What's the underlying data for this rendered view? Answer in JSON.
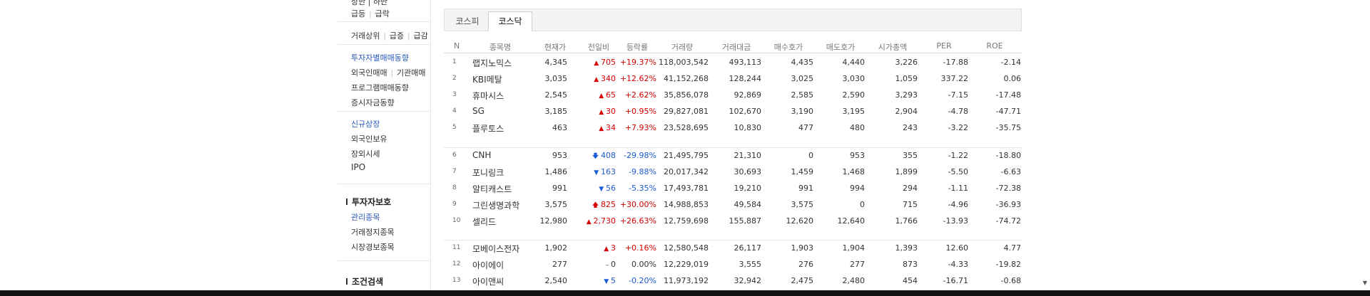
{
  "sidebar": {
    "cut_text": "상한 | 하한",
    "surge": {
      "a": "급등",
      "b": "급락"
    },
    "vol_top": {
      "a": "거래상위",
      "b": "급증",
      "c": "급감"
    },
    "investor_trade": "투자자별매매동향",
    "foreign_inst": {
      "a": "외국인매매",
      "b": "기관매매"
    },
    "program": "프로그램매매동향",
    "funds": "증시자금동향",
    "new_listing": "신규상장",
    "foreign_hold": "외국인보유",
    "otc": "장외시세",
    "ipo": "IPO",
    "protect_head": "투자자보호",
    "managed": "관리종목",
    "halted": "거래정지종목",
    "warning": "시장경보종목",
    "search_head": "조건검색"
  },
  "tabs": [
    {
      "label": "코스피",
      "active": false
    },
    {
      "label": "코스닥",
      "active": true
    }
  ],
  "columns": [
    "N",
    "종목명",
    "현재가",
    "전일비",
    "등락률",
    "거래량",
    "거래대금",
    "매수호가",
    "매도호가",
    "시가총액",
    "PER",
    "ROE"
  ],
  "rows": [
    {
      "n": "1",
      "name": "랩지노믹스",
      "price": "4,345",
      "icon": "▲",
      "chg": "705",
      "dir": "up",
      "rate": "+19.37%",
      "vol": "118,003,542",
      "amt": "493,113",
      "bid": "4,435",
      "ask": "4,440",
      "cap": "3,226",
      "per": "-17.88",
      "roe": "-2.14"
    },
    {
      "n": "2",
      "name": "KBI메탈",
      "price": "3,035",
      "icon": "▲",
      "chg": "340",
      "dir": "up",
      "rate": "+12.62%",
      "vol": "41,152,268",
      "amt": "128,244",
      "bid": "3,025",
      "ask": "3,030",
      "cap": "1,059",
      "per": "337.22",
      "roe": "0.06"
    },
    {
      "n": "3",
      "name": "휴마시스",
      "price": "2,545",
      "icon": "▲",
      "chg": "65",
      "dir": "up",
      "rate": "+2.62%",
      "vol": "35,856,078",
      "amt": "92,869",
      "bid": "2,585",
      "ask": "2,590",
      "cap": "3,293",
      "per": "-7.15",
      "roe": "-17.48"
    },
    {
      "n": "4",
      "name": "SG",
      "price": "3,185",
      "icon": "▲",
      "chg": "30",
      "dir": "up",
      "rate": "+0.95%",
      "vol": "29,827,081",
      "amt": "102,670",
      "bid": "3,190",
      "ask": "3,195",
      "cap": "2,904",
      "per": "-4.78",
      "roe": "-47.71"
    },
    {
      "n": "5",
      "name": "플루토스",
      "price": "463",
      "icon": "▲",
      "chg": "34",
      "dir": "up",
      "rate": "+7.93%",
      "vol": "23,528,695",
      "amt": "10,830",
      "bid": "477",
      "ask": "480",
      "cap": "243",
      "per": "-3.22",
      "roe": "-35.75"
    },
    {
      "n": "6",
      "name": "CNH",
      "price": "953",
      "icon": "🡇",
      "chg": "408",
      "dir": "down",
      "rate": "-29.98%",
      "vol": "21,495,795",
      "amt": "21,310",
      "bid": "0",
      "ask": "953",
      "cap": "355",
      "per": "-1.22",
      "roe": "-18.80"
    },
    {
      "n": "7",
      "name": "포니링크",
      "price": "1,486",
      "icon": "▼",
      "chg": "163",
      "dir": "down",
      "rate": "-9.88%",
      "vol": "20,017,342",
      "amt": "30,693",
      "bid": "1,459",
      "ask": "1,468",
      "cap": "1,899",
      "per": "-5.50",
      "roe": "-6.63"
    },
    {
      "n": "8",
      "name": "알티캐스트",
      "price": "991",
      "icon": "▼",
      "chg": "56",
      "dir": "down",
      "rate": "-5.35%",
      "vol": "17,493,781",
      "amt": "19,210",
      "bid": "991",
      "ask": "994",
      "cap": "294",
      "per": "-1.11",
      "roe": "-72.38"
    },
    {
      "n": "9",
      "name": "그린생명과학",
      "price": "3,575",
      "icon": "🡅",
      "chg": "825",
      "dir": "up",
      "rate": "+30.00%",
      "vol": "14,988,853",
      "amt": "49,584",
      "bid": "3,575",
      "ask": "0",
      "cap": "715",
      "per": "-4.96",
      "roe": "-36.93"
    },
    {
      "n": "10",
      "name": "셀리드",
      "price": "12,980",
      "icon": "▲",
      "chg": "2,730",
      "dir": "up",
      "rate": "+26.63%",
      "vol": "12,759,698",
      "amt": "155,887",
      "bid": "12,620",
      "ask": "12,640",
      "cap": "1,766",
      "per": "-13.93",
      "roe": "-74.72"
    },
    {
      "n": "11",
      "name": "모베이스전자",
      "price": "1,902",
      "icon": "▲",
      "chg": "3",
      "dir": "up",
      "rate": "+0.16%",
      "vol": "12,580,548",
      "amt": "26,117",
      "bid": "1,903",
      "ask": "1,904",
      "cap": "1,393",
      "per": "12.60",
      "roe": "4.77"
    },
    {
      "n": "12",
      "name": "아이에이",
      "price": "277",
      "icon": "–",
      "chg": "0",
      "dir": "flat",
      "rate": "0.00%",
      "vol": "12,229,019",
      "amt": "3,555",
      "bid": "276",
      "ask": "277",
      "cap": "873",
      "per": "-4.33",
      "roe": "-19.82"
    },
    {
      "n": "13",
      "name": "아이앤씨",
      "price": "2,540",
      "icon": "▼",
      "chg": "5",
      "dir": "down",
      "rate": "-0.20%",
      "vol": "11,973,192",
      "amt": "32,942",
      "bid": "2,475",
      "ask": "2,480",
      "cap": "454",
      "per": "-16.71",
      "roe": "-0.68"
    }
  ],
  "colors": {
    "up": "#d60000",
    "down": "#1d5ad6",
    "link": "#2a5abf"
  }
}
